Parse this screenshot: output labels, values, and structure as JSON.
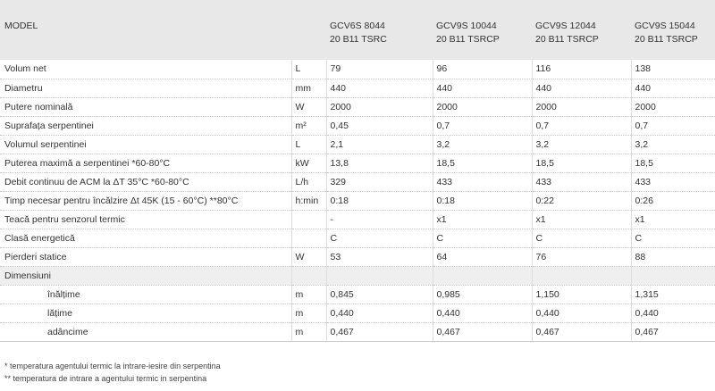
{
  "header": {
    "model_label": "MODEL",
    "models": [
      [
        "GCV6S 8044",
        "20 B11 TSRC"
      ],
      [
        "GCV9S 10044",
        "20 B11 TSRCP"
      ],
      [
        "GCV9S 12044",
        "20 B11 TSRCP"
      ],
      [
        "GCV9S 15044",
        "20 B11 TSRCP"
      ]
    ]
  },
  "rows": [
    {
      "label": "Volum net",
      "unit": "L",
      "values": [
        "79",
        "96",
        "116",
        "138"
      ]
    },
    {
      "label": "Diametru",
      "unit": "mm",
      "values": [
        "440",
        "440",
        "440",
        "440"
      ]
    },
    {
      "label": "Putere nominală",
      "unit": "W",
      "values": [
        "2000",
        "2000",
        "2000",
        "2000"
      ]
    },
    {
      "label": "Suprafața serpentinei",
      "unit": "m²",
      "values": [
        "0,45",
        "0,7",
        "0,7",
        "0,7"
      ]
    },
    {
      "label": "Volumul serpentinei",
      "unit": "L",
      "values": [
        "2,1",
        "3,2",
        "3,2",
        "3,2"
      ]
    },
    {
      "label": "Puterea maximă a serpentinei *60-80°C",
      "unit": "kW",
      "values": [
        "13,8",
        "18,5",
        "18,5",
        "18,5"
      ]
    },
    {
      "label": "Debit continuu de ACM la ΔT 35°C *60-80°C",
      "unit": "L/h",
      "values": [
        "329",
        "433",
        "433",
        "433"
      ]
    },
    {
      "label": "Timp necesar pentru încălzire Δt 45K (15 - 60°C) **80°C",
      "unit": "h:min",
      "values": [
        "0:18",
        "0:18",
        "0:22",
        "0:26"
      ]
    },
    {
      "label": "Teacă pentru senzorul termic",
      "unit": "",
      "values": [
        "-",
        "x1",
        "x1",
        "x1"
      ]
    },
    {
      "label": "Clasă energetică",
      "unit": "",
      "values": [
        "C",
        "C",
        "C",
        "C"
      ]
    },
    {
      "label": "Pierderi statice",
      "unit": "W",
      "values": [
        "53",
        "64",
        "76",
        "88"
      ]
    }
  ],
  "group_label": "Dimensiuni",
  "dimensions": [
    {
      "label": "înălțime",
      "unit": "m",
      "values": [
        "0,845",
        "0,985",
        "1,150",
        "1,315"
      ]
    },
    {
      "label": "lățime",
      "unit": "m",
      "values": [
        "0,440",
        "0,440",
        "0,440",
        "0,440"
      ]
    },
    {
      "label": "adâncime",
      "unit": "m",
      "values": [
        "0,467",
        "0,467",
        "0,467",
        "0,467"
      ]
    }
  ],
  "footnotes": [
    "*  temperatura agentului termic la intrare-iesire din serpentina",
    "**  temperatura de intrare a agentului termic in serpentina"
  ]
}
